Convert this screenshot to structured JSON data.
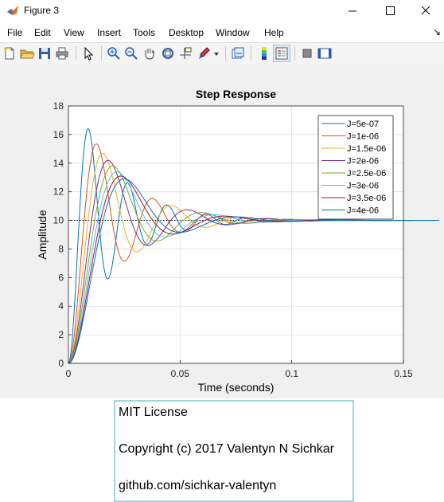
{
  "window": {
    "title": "Figure 3",
    "controls": [
      "minimize",
      "maximize",
      "close"
    ]
  },
  "menu": [
    "File",
    "Edit",
    "View",
    "Insert",
    "Tools",
    "Desktop",
    "Window",
    "Help"
  ],
  "menu_overflow_arrow": "↘",
  "toolbar": [
    "new-figure-icon",
    "open-file-icon",
    "save-icon",
    "print-icon",
    "pointer-icon",
    "zoom-in-icon",
    "zoom-out-icon",
    "pan-icon",
    "rotate-3d-icon",
    "data-cursor-icon",
    "brush-icon",
    "brush-dropdown-icon",
    "link-plot-icon",
    "colorbar-icon",
    "legend-icon",
    "hide-plot-tools-icon",
    "show-plot-tools-icon"
  ],
  "chart_data": {
    "type": "line",
    "title": "Step Response",
    "xlabel": "Time (seconds)",
    "ylabel": "Amplitude",
    "xlim": [
      0,
      0.15
    ],
    "ylim": [
      0,
      18
    ],
    "xticks": [
      0,
      0.05,
      0.1,
      0.15
    ],
    "xtick_labels": [
      "0",
      "0.05",
      "0.1",
      "0.15"
    ],
    "yticks": [
      0,
      2,
      4,
      6,
      8,
      10,
      12,
      14,
      16,
      18
    ],
    "ytick_labels": [
      "0",
      "2",
      "4",
      "6",
      "8",
      "10",
      "12",
      "14",
      "16",
      "18"
    ],
    "grid": true,
    "legend_position": "top-right",
    "reference_line": 10,
    "series": [
      {
        "name": "J=5e-07",
        "color": "#0072bd",
        "final": 10,
        "peak_time": 0.0088,
        "peak": 16.4,
        "undershoot": 5.9
      },
      {
        "name": "J=1e-06",
        "color": "#d95319",
        "final": 10,
        "peak_time": 0.0125,
        "peak": 15.35,
        "undershoot": 7.1
      },
      {
        "name": "J=1.5e-06",
        "color": "#edb120",
        "final": 10,
        "peak_time": 0.0153,
        "peak": 14.7,
        "undershoot": 7.8
      },
      {
        "name": "J=2e-06",
        "color": "#7e2f8e",
        "final": 10,
        "peak_time": 0.0177,
        "peak": 14.2,
        "undershoot": 8.2
      },
      {
        "name": "J=2.5e-06",
        "color": "#77ac30",
        "final": 10,
        "peak_time": 0.0198,
        "peak": 13.8,
        "undershoot": 8.5
      },
      {
        "name": "J=3e-06",
        "color": "#4dbeee",
        "final": 10,
        "peak_time": 0.0217,
        "peak": 13.4,
        "undershoot": 8.7
      },
      {
        "name": "J=3.5e-06",
        "color": "#a2142f",
        "final": 10,
        "peak_time": 0.0234,
        "peak": 13.1,
        "undershoot": 8.9
      },
      {
        "name": "J=4e-06",
        "color": "#0072bd",
        "final": 10,
        "peak_time": 0.025,
        "peak": 12.9,
        "undershoot": 9.05
      }
    ]
  },
  "license": {
    "line1": "MIT License",
    "line2": "Copyright (c) 2017 Valentyn N Sichkar",
    "line3": "github.com/sichkar-valentyn"
  }
}
